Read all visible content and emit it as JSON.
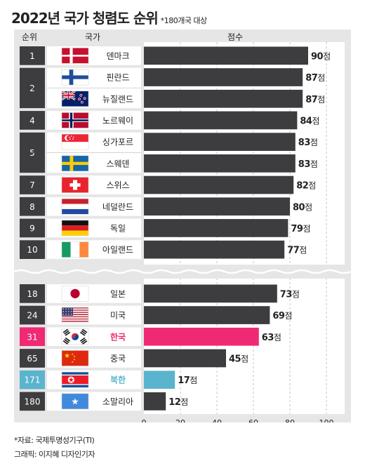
{
  "title": "2022년 국가 청렴도 순위",
  "title_note": "*180개국 대상",
  "headers": {
    "rank": "순위",
    "country": "국가",
    "score": "점수"
  },
  "score_unit": "점",
  "footer": {
    "source": "*자료: 국제투명성기구(TI)",
    "credit": "그래픽: 이지혜 디자인기자"
  },
  "colors": {
    "bar": "#3d3d3f",
    "korea": "#ee2a74",
    "north_korea": "#5ab4ce",
    "panel": "#e6e6e6"
  },
  "chart_data": {
    "type": "bar",
    "orientation": "horizontal",
    "xlim": [
      0,
      100
    ],
    "xticks": [
      0,
      20,
      40,
      60,
      80,
      100
    ],
    "grid": true,
    "axis_break_after_row": 10,
    "rank_groups": [
      {
        "rank": "1",
        "rows": [
          0
        ]
      },
      {
        "rank": "2",
        "rows": [
          1,
          2
        ]
      },
      {
        "rank": "4",
        "rows": [
          3
        ]
      },
      {
        "rank": "5",
        "rows": [
          4,
          5
        ]
      },
      {
        "rank": "7",
        "rows": [
          6
        ]
      },
      {
        "rank": "8",
        "rows": [
          7
        ]
      },
      {
        "rank": "9",
        "rows": [
          8
        ]
      },
      {
        "rank": "10",
        "rows": [
          9
        ]
      },
      {
        "rank": "18",
        "rows": [
          10
        ]
      },
      {
        "rank": "24",
        "rows": [
          11
        ]
      },
      {
        "rank": "31",
        "rows": [
          12
        ],
        "highlight": "korea"
      },
      {
        "rank": "65",
        "rows": [
          13
        ]
      },
      {
        "rank": "171",
        "rows": [
          14
        ],
        "highlight": "north_korea"
      },
      {
        "rank": "180",
        "rows": [
          15
        ]
      }
    ],
    "rows": [
      {
        "country": "덴마크",
        "value": 90,
        "flag": "denmark-flag"
      },
      {
        "country": "핀란드",
        "value": 87,
        "flag": "finland-flag"
      },
      {
        "country": "뉴질랜드",
        "value": 87,
        "flag": "new-zealand-flag"
      },
      {
        "country": "노르웨이",
        "value": 84,
        "flag": "norway-flag"
      },
      {
        "country": "싱가포르",
        "value": 83,
        "flag": "singapore-flag"
      },
      {
        "country": "스웨덴",
        "value": 83,
        "flag": "sweden-flag"
      },
      {
        "country": "스위스",
        "value": 82,
        "flag": "switzerland-flag"
      },
      {
        "country": "네덜란드",
        "value": 80,
        "flag": "netherlands-flag"
      },
      {
        "country": "독일",
        "value": 79,
        "flag": "germany-flag"
      },
      {
        "country": "아일랜드",
        "value": 77,
        "flag": "ireland-flag"
      },
      {
        "country": "일본",
        "value": 73,
        "flag": "japan-flag"
      },
      {
        "country": "미국",
        "value": 69,
        "flag": "usa-flag"
      },
      {
        "country": "한국",
        "value": 63,
        "flag": "south-korea-flag",
        "highlight": "korea"
      },
      {
        "country": "중국",
        "value": 45,
        "flag": "china-flag"
      },
      {
        "country": "북한",
        "value": 17,
        "flag": "north-korea-flag",
        "highlight": "north_korea"
      },
      {
        "country": "소말리아",
        "value": 12,
        "flag": "somalia-flag"
      }
    ]
  }
}
